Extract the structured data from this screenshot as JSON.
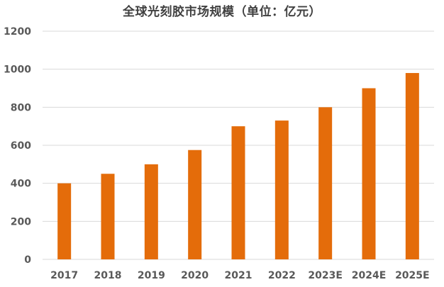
{
  "chart_data": {
    "type": "bar",
    "title": "全球光刻胶市场规模（单位：亿元）",
    "categories": [
      "2017",
      "2018",
      "2019",
      "2020",
      "2021",
      "2022",
      "2023E",
      "2024E",
      "2025E"
    ],
    "series": [
      {
        "values": [
          400,
          450,
          500,
          575,
          700,
          730,
          800,
          900,
          980
        ],
        "color": "#E46C0A"
      }
    ],
    "ylim": [
      0,
      1200
    ],
    "yticks": [
      0,
      200,
      400,
      600,
      800,
      1000,
      1200
    ],
    "grid": true,
    "legend": "none"
  }
}
